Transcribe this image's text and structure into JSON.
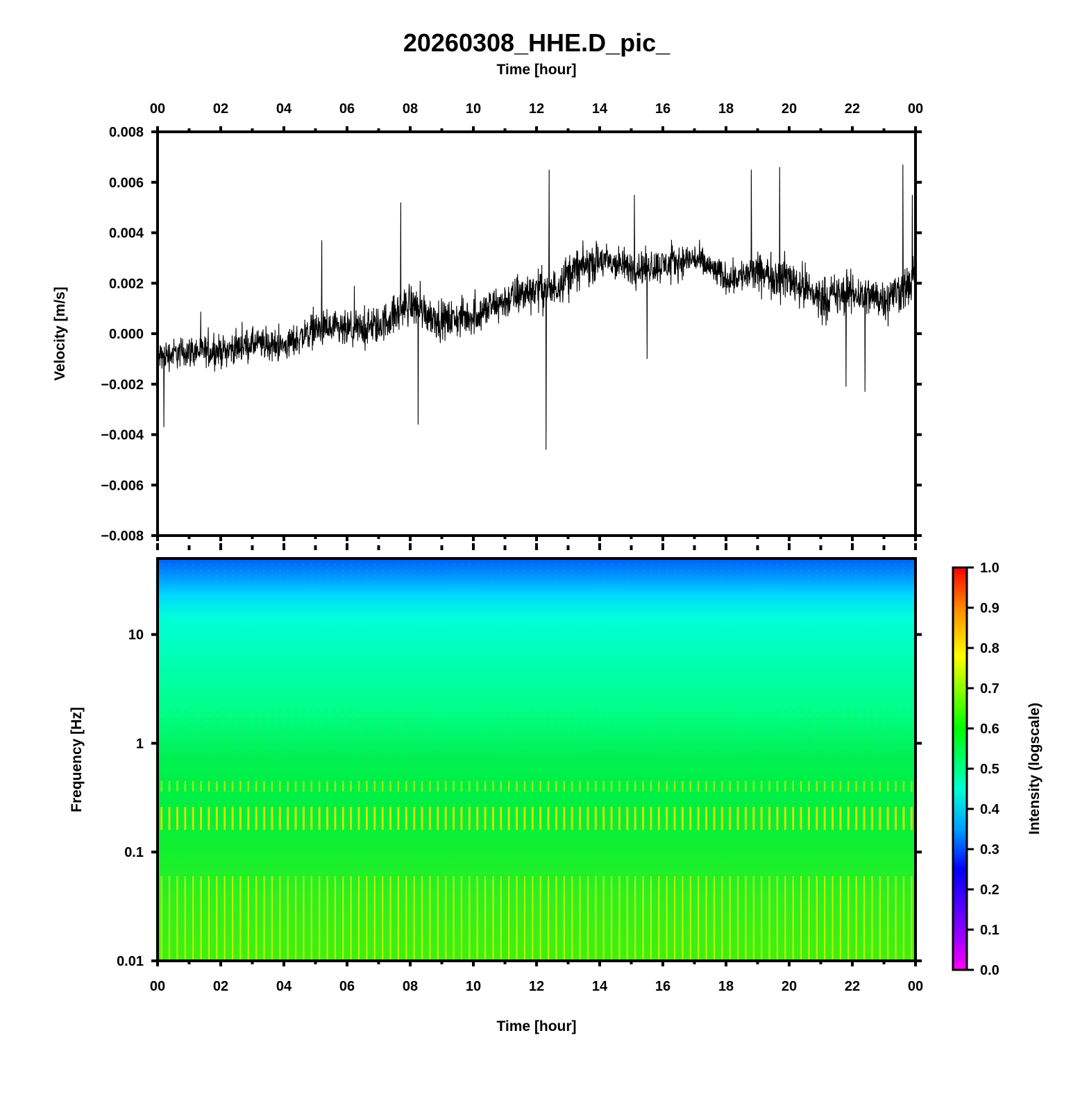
{
  "title": "20260308_HHE.D_pic_",
  "colors": {
    "frame": "#000000",
    "trace": "#000000",
    "background": "#ffffff"
  },
  "chart_data": [
    {
      "type": "line",
      "name": "velocity-waveform",
      "title": "20260308_HHE.D_pic_",
      "xlabel_top": "Time [hour]",
      "ylabel": "Velocity [m/s]",
      "xlim": [
        0,
        24
      ],
      "ylim": [
        -0.008,
        0.008
      ],
      "x_tick_labels": [
        "00",
        "02",
        "04",
        "06",
        "08",
        "10",
        "12",
        "14",
        "16",
        "18",
        "20",
        "22",
        "00"
      ],
      "y_tick_values": [
        0.008,
        0.006,
        0.004,
        0.002,
        0.0,
        -0.002,
        -0.004,
        -0.006,
        -0.008
      ],
      "y_tick_labels": [
        "0.008",
        "0.006",
        "0.004",
        "0.002",
        "0.000",
        "−0.002",
        "−0.004",
        "−0.006",
        "−0.008"
      ],
      "series": [
        {
          "name": "HHE velocity",
          "trend_x": [
            0,
            1,
            2,
            3,
            4,
            5,
            6,
            7,
            8,
            9,
            10,
            11,
            12,
            12.5,
            13,
            14,
            15,
            16,
            17,
            18,
            19,
            20,
            21,
            22,
            23,
            24
          ],
          "trend_y": [
            -0.0009,
            -0.0007,
            -0.0007,
            -0.0004,
            -0.0005,
            0.0002,
            0.0001,
            0.0003,
            0.0012,
            0.0005,
            0.0007,
            0.0013,
            0.0018,
            0.0017,
            0.0024,
            0.0029,
            0.0026,
            0.0027,
            0.003,
            0.0022,
            0.0024,
            0.0022,
            0.0014,
            0.0016,
            0.0014,
            0.002
          ],
          "noise_amplitude": [
            0.0009,
            0.0009,
            0.0009,
            0.0009,
            0.0009,
            0.001,
            0.0011,
            0.0011,
            0.0012,
            0.0011,
            0.0011,
            0.0011,
            0.0012,
            0.0012,
            0.0011,
            0.001,
            0.001,
            0.0009,
            0.0009,
            0.0011,
            0.0013,
            0.0013,
            0.0012,
            0.0012,
            0.0013,
            0.0014
          ],
          "peaks": [
            {
              "x": 0.2,
              "y": -0.0037
            },
            {
              "x": 5.2,
              "y": 0.0037
            },
            {
              "x": 7.7,
              "y": 0.0052
            },
            {
              "x": 8.25,
              "y": -0.0036
            },
            {
              "x": 12.3,
              "y": -0.0046
            },
            {
              "x": 12.4,
              "y": 0.0065
            },
            {
              "x": 15.1,
              "y": 0.0055
            },
            {
              "x": 15.5,
              "y": -0.001
            },
            {
              "x": 18.8,
              "y": 0.0065
            },
            {
              "x": 19.7,
              "y": 0.0066
            },
            {
              "x": 21.8,
              "y": -0.0021
            },
            {
              "x": 22.4,
              "y": -0.0023
            },
            {
              "x": 23.6,
              "y": 0.0067
            },
            {
              "x": 23.9,
              "y": 0.0055
            }
          ]
        }
      ]
    },
    {
      "type": "heatmap",
      "name": "spectrogram",
      "xlabel": "Time [hour]",
      "ylabel": "Frequency [Hz]",
      "xlim": [
        0,
        24
      ],
      "ylim": [
        0.01,
        50
      ],
      "yscale": "log",
      "x_tick_labels": [
        "00",
        "02",
        "04",
        "06",
        "08",
        "10",
        "12",
        "14",
        "16",
        "18",
        "20",
        "22",
        "00"
      ],
      "y_tick_values": [
        10,
        1,
        0.1,
        0.01
      ],
      "y_tick_labels": [
        "10",
        "1",
        "0.1",
        "0.01"
      ],
      "intensity_profile": {
        "freq": [
          50,
          40,
          30,
          20,
          10,
          5,
          2,
          1,
          0.5,
          0.3,
          0.2,
          0.1,
          0.05,
          0.02,
          0.01
        ],
        "intensity": [
          0.32,
          0.36,
          0.4,
          0.43,
          0.47,
          0.5,
          0.53,
          0.55,
          0.58,
          0.6,
          0.63,
          0.58,
          0.62,
          0.65,
          0.68
        ]
      },
      "stripe_count": 96,
      "colorbar": {
        "label": "Intensity (logscale)",
        "range": [
          0.0,
          1.0
        ],
        "tick_labels": [
          "1.0",
          "0.9",
          "0.8",
          "0.7",
          "0.6",
          "0.5",
          "0.4",
          "0.3",
          "0.2",
          "0.1",
          "0.0"
        ]
      }
    }
  ]
}
